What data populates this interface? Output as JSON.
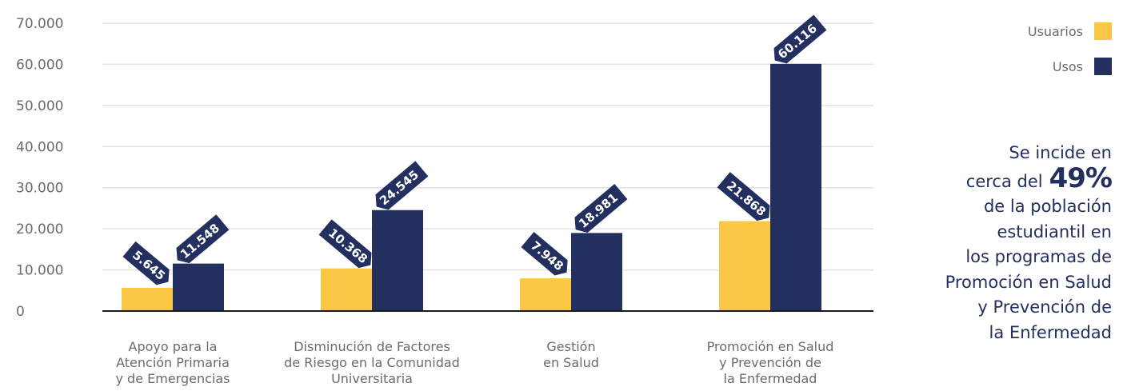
{
  "chart_data": {
    "type": "bar",
    "categories": [
      [
        "Apoyo para la",
        "Atención Primaria",
        "y de Emergencias"
      ],
      [
        "Disminución de Factores",
        "de Riesgo en la Comunidad",
        "Universitaria"
      ],
      [
        "Gestión",
        "en Salud"
      ],
      [
        "Promoción en Salud",
        "y Prevención de",
        "la Enfermedad"
      ]
    ],
    "series": [
      {
        "name": "Usuarios",
        "color": "#fbc646",
        "values": [
          5645,
          10368,
          7948,
          21868
        ],
        "labels": [
          "5.645",
          "10.368",
          "7.948",
          "21.868"
        ]
      },
      {
        "name": "Usos",
        "color": "#232f5e",
        "values": [
          11548,
          24545,
          18981,
          60116
        ],
        "labels": [
          "11.548",
          "24.545",
          "18.981",
          "60.116"
        ]
      }
    ],
    "yticks": [
      0,
      10000,
      20000,
      30000,
      40000,
      50000,
      60000,
      70000
    ],
    "ytick_labels": [
      "0",
      "10.000",
      "20.000",
      "30.000",
      "40.000",
      "50.000",
      "60.000",
      "70.000"
    ],
    "ylim": [
      0,
      70000
    ],
    "grid": true,
    "legend_position": "top-right"
  },
  "callout": {
    "lines": [
      "Se incide en",
      "cerca del",
      "de la población",
      "estudiantil en",
      "los programas de",
      "Promoción en Salud",
      "y Prevención de",
      "la Enfermedad"
    ],
    "highlight": "49%"
  }
}
